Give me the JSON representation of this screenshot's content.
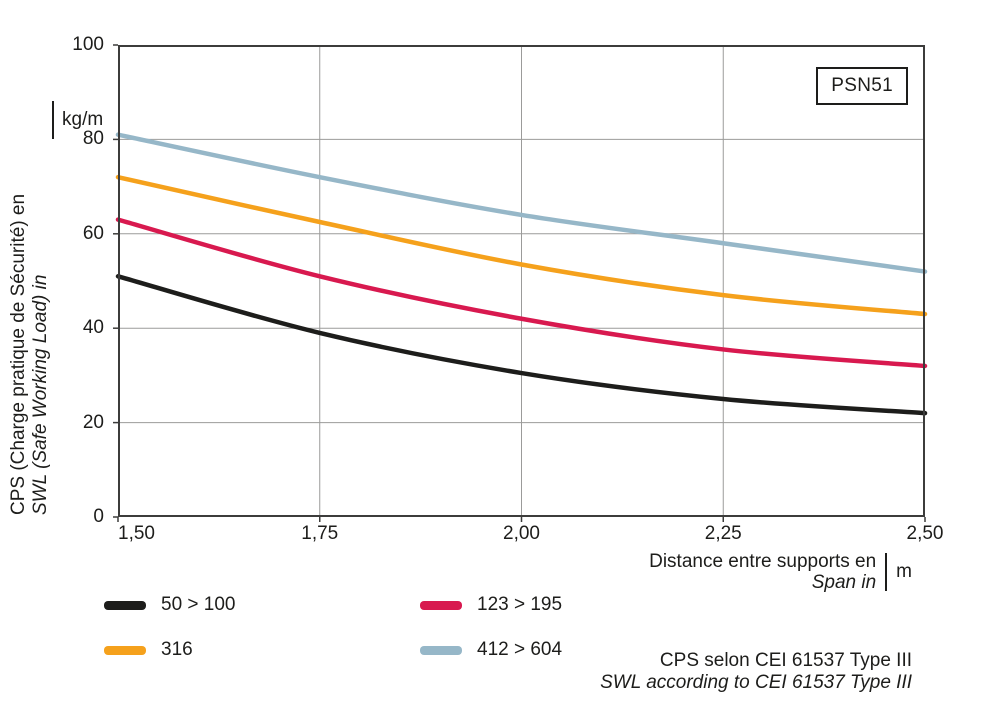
{
  "chart_data": {
    "type": "line",
    "badge": "PSN51",
    "x": [
      1.5,
      1.75,
      2.0,
      2.25,
      2.5
    ],
    "x_tick_labels": [
      "1,50",
      "1,75",
      "2,00",
      "2,25",
      "2,50"
    ],
    "xlim": [
      1.5,
      2.5
    ],
    "y_ticks": [
      0,
      20,
      40,
      60,
      80,
      100
    ],
    "ylim": [
      0,
      100
    ],
    "grid": true,
    "legend_position": "bottom",
    "xlabel_fr": "Distance entre supports en",
    "xlabel_en": "Span in",
    "x_unit": "m",
    "ylabel_fr": "CPS (Charge pratique de Sécurité) en",
    "ylabel_en": "SWL (Safe Working Load) in",
    "y_unit": "kg/m",
    "series": [
      {
        "name": "50 > 100",
        "color": "#1d1d1b",
        "values": [
          51,
          39,
          30.5,
          25,
          22
        ]
      },
      {
        "name": "123 > 195",
        "color": "#d8194f",
        "values": [
          63,
          51,
          42,
          35.5,
          32
        ]
      },
      {
        "name": "316",
        "color": "#f5a11c",
        "values": [
          72,
          62.5,
          53.5,
          47,
          43
        ]
      },
      {
        "name": "412 > 604",
        "color": "#96b7c8",
        "values": [
          81,
          72,
          64,
          58,
          52
        ]
      }
    ],
    "footnote_fr": "CPS selon CEI 61537 Type III",
    "footnote_en": "SWL according to CEI 61537 Type III",
    "colors": {
      "grid": "#9b9b9a",
      "frame": "#3c3c3b",
      "text": "#1d1d1b"
    }
  }
}
